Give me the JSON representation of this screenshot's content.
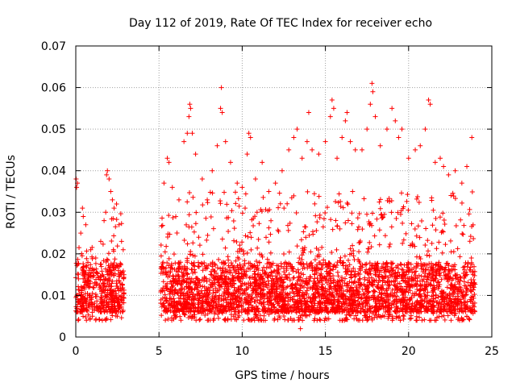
{
  "chart_data": {
    "type": "scatter",
    "title": "Day 112 of 2019, Rate Of TEC Index for receiver echo",
    "xlabel": "GPS time / hours",
    "ylabel": "ROTI / TECUs",
    "xlim": [
      0,
      25
    ],
    "ylim": [
      0,
      0.07
    ],
    "xticks": [
      0,
      5,
      10,
      15,
      20,
      25
    ],
    "yticks": [
      0,
      0.01,
      0.02,
      0.03,
      0.04,
      0.05,
      0.06,
      0.07
    ],
    "xtick_labels": [
      "0",
      "5",
      "10",
      "15",
      "20",
      "25"
    ],
    "ytick_labels": [
      "0",
      "0.01",
      "0.02",
      "0.03",
      "0.04",
      "0.05",
      "0.06",
      "0.07"
    ],
    "grid": true,
    "marker": "+",
    "marker_color": "#ff0000",
    "data_gap_hours": [
      2.9,
      5.1
    ],
    "series": [
      {
        "name": "ROTI",
        "points": [
          [
            0.02,
            0.038
          ],
          [
            0.05,
            0.036
          ],
          [
            0.1,
            0.037
          ],
          [
            0.4,
            0.031
          ],
          [
            0.45,
            0.029
          ],
          [
            0.3,
            0.025
          ],
          [
            0.6,
            0.027
          ],
          [
            0.9,
            0.021
          ],
          [
            1.2,
            0.019
          ],
          [
            1.5,
            0.023
          ],
          [
            1.7,
            0.028
          ],
          [
            1.8,
            0.03
          ],
          [
            1.85,
            0.039
          ],
          [
            1.9,
            0.04
          ],
          [
            2.0,
            0.038
          ],
          [
            2.1,
            0.035
          ],
          [
            2.2,
            0.033
          ],
          [
            2.3,
            0.031
          ],
          [
            2.45,
            0.032
          ],
          [
            2.6,
            0.027
          ],
          [
            2.75,
            0.023
          ],
          [
            2.85,
            0.021
          ],
          [
            5.3,
            0.037
          ],
          [
            5.5,
            0.043
          ],
          [
            5.6,
            0.042
          ],
          [
            5.8,
            0.036
          ],
          [
            6.2,
            0.033
          ],
          [
            6.5,
            0.047
          ],
          [
            6.7,
            0.049
          ],
          [
            6.8,
            0.053
          ],
          [
            6.85,
            0.056
          ],
          [
            6.9,
            0.055
          ],
          [
            7.0,
            0.049
          ],
          [
            7.2,
            0.044
          ],
          [
            7.6,
            0.038
          ],
          [
            7.9,
            0.033
          ],
          [
            8.2,
            0.04
          ],
          [
            8.5,
            0.046
          ],
          [
            8.7,
            0.055
          ],
          [
            8.75,
            0.06
          ],
          [
            8.8,
            0.054
          ],
          [
            9.0,
            0.047
          ],
          [
            9.3,
            0.042
          ],
          [
            9.7,
            0.037
          ],
          [
            10.0,
            0.036
          ],
          [
            10.3,
            0.044
          ],
          [
            10.4,
            0.049
          ],
          [
            10.5,
            0.048
          ],
          [
            10.8,
            0.038
          ],
          [
            11.2,
            0.042
          ],
          [
            11.6,
            0.035
          ],
          [
            12.0,
            0.037
          ],
          [
            12.4,
            0.04
          ],
          [
            12.8,
            0.045
          ],
          [
            13.1,
            0.048
          ],
          [
            13.3,
            0.05
          ],
          [
            13.6,
            0.043
          ],
          [
            13.9,
            0.047
          ],
          [
            14.0,
            0.054
          ],
          [
            14.2,
            0.045
          ],
          [
            14.6,
            0.044
          ],
          [
            15.0,
            0.047
          ],
          [
            15.3,
            0.053
          ],
          [
            15.4,
            0.057
          ],
          [
            15.5,
            0.055
          ],
          [
            15.7,
            0.043
          ],
          [
            16.0,
            0.048
          ],
          [
            16.2,
            0.052
          ],
          [
            16.3,
            0.054
          ],
          [
            16.5,
            0.047
          ],
          [
            16.8,
            0.045
          ],
          [
            17.2,
            0.045
          ],
          [
            17.5,
            0.05
          ],
          [
            17.7,
            0.056
          ],
          [
            17.8,
            0.061
          ],
          [
            17.85,
            0.059
          ],
          [
            18.0,
            0.053
          ],
          [
            18.3,
            0.046
          ],
          [
            18.7,
            0.05
          ],
          [
            19.0,
            0.055
          ],
          [
            19.2,
            0.052
          ],
          [
            19.4,
            0.048
          ],
          [
            19.6,
            0.05
          ],
          [
            20.0,
            0.043
          ],
          [
            20.4,
            0.045
          ],
          [
            20.7,
            0.046
          ],
          [
            21.0,
            0.05
          ],
          [
            21.2,
            0.057
          ],
          [
            21.3,
            0.056
          ],
          [
            21.6,
            0.042
          ],
          [
            21.9,
            0.043
          ],
          [
            22.1,
            0.041
          ],
          [
            22.4,
            0.039
          ],
          [
            22.8,
            0.04
          ],
          [
            23.2,
            0.037
          ],
          [
            23.5,
            0.041
          ],
          [
            23.8,
            0.048
          ],
          [
            0.3,
            0.006
          ],
          [
            1.0,
            0.005
          ],
          [
            1.5,
            0.006
          ],
          [
            2.5,
            0.005
          ],
          [
            5.5,
            0.006
          ],
          [
            7.0,
            0.005
          ],
          [
            9.0,
            0.004
          ],
          [
            11.0,
            0.004
          ],
          [
            13.0,
            0.004
          ],
          [
            13.5,
            0.002
          ],
          [
            14.5,
            0.004
          ],
          [
            16.0,
            0.004
          ],
          [
            17.5,
            0.004
          ],
          [
            19.5,
            0.004
          ],
          [
            20.5,
            0.004
          ],
          [
            22.0,
            0.005
          ],
          [
            23.5,
            0.005
          ]
        ]
      }
    ]
  }
}
